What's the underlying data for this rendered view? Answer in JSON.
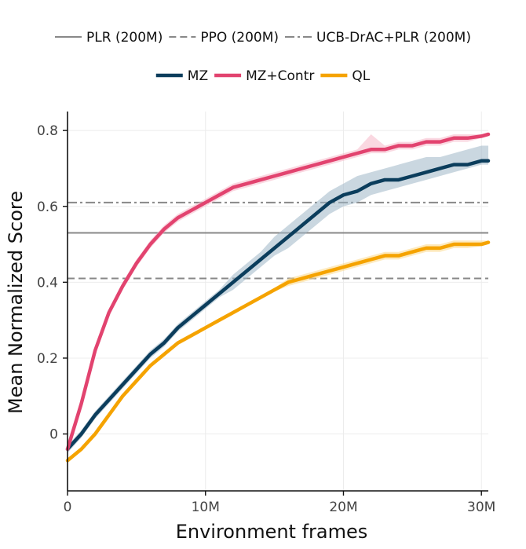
{
  "chart_data": {
    "type": "line",
    "xlabel": "Environment frames",
    "ylabel": "Mean Normalized Score",
    "xlim": [
      0,
      30.5
    ],
    "ylim": [
      -0.15,
      0.85
    ],
    "x_unit_millions": true,
    "xticks": [
      0,
      10,
      20,
      30
    ],
    "xtick_labels": [
      "0",
      "10M",
      "20M",
      "30M"
    ],
    "yticks": [
      0,
      0.2,
      0.4,
      0.6,
      0.8
    ],
    "ytick_labels": [
      "0",
      "0.2",
      "0.4",
      "0.6",
      "0.8"
    ],
    "grid": true,
    "legend_placement": "top",
    "baselines": [
      {
        "name": "PLR (200M)",
        "value": 0.53,
        "style": "solid",
        "color": "#888888"
      },
      {
        "name": "PPO (200M)",
        "value": 0.41,
        "style": "dashed",
        "color": "#888888"
      },
      {
        "name": "UCB-DrAC+PLR (200M)",
        "value": 0.61,
        "style": "dashdot",
        "color": "#888888"
      }
    ],
    "series": [
      {
        "name": "MZ",
        "color": "#0b3d5c",
        "band_color": "#9fb6c6",
        "x": [
          0,
          1,
          2,
          3,
          4,
          5,
          6,
          7,
          8,
          9,
          10,
          11,
          12,
          13,
          14,
          15,
          16,
          17,
          18,
          19,
          20,
          21,
          22,
          23,
          24,
          25,
          26,
          27,
          28,
          29,
          30,
          30.5
        ],
        "y": [
          -0.04,
          0.0,
          0.05,
          0.09,
          0.13,
          0.17,
          0.21,
          0.24,
          0.28,
          0.31,
          0.34,
          0.37,
          0.4,
          0.43,
          0.46,
          0.49,
          0.52,
          0.55,
          0.58,
          0.61,
          0.63,
          0.64,
          0.66,
          0.67,
          0.67,
          0.68,
          0.69,
          0.7,
          0.71,
          0.71,
          0.72,
          0.72
        ],
        "lo": [
          -0.05,
          -0.01,
          0.04,
          0.08,
          0.12,
          0.16,
          0.2,
          0.23,
          0.27,
          0.3,
          0.33,
          0.36,
          0.38,
          0.41,
          0.44,
          0.47,
          0.49,
          0.52,
          0.55,
          0.58,
          0.6,
          0.61,
          0.63,
          0.64,
          0.65,
          0.66,
          0.67,
          0.68,
          0.69,
          0.7,
          0.71,
          0.71
        ],
        "hi": [
          -0.03,
          0.01,
          0.06,
          0.1,
          0.14,
          0.18,
          0.22,
          0.25,
          0.29,
          0.32,
          0.35,
          0.38,
          0.42,
          0.45,
          0.48,
          0.52,
          0.55,
          0.58,
          0.61,
          0.64,
          0.66,
          0.68,
          0.69,
          0.7,
          0.71,
          0.72,
          0.73,
          0.73,
          0.74,
          0.75,
          0.76,
          0.76
        ]
      },
      {
        "name": "MZ+Contr",
        "color": "#e2436f",
        "band_color": "#f5b8c9",
        "x": [
          0,
          1,
          2,
          3,
          4,
          5,
          6,
          7,
          8,
          9,
          10,
          11,
          12,
          13,
          14,
          15,
          16,
          17,
          18,
          19,
          20,
          21,
          22,
          23,
          24,
          25,
          26,
          27,
          28,
          29,
          30,
          30.5
        ],
        "y": [
          -0.04,
          0.08,
          0.22,
          0.32,
          0.39,
          0.45,
          0.5,
          0.54,
          0.57,
          0.59,
          0.61,
          0.63,
          0.65,
          0.66,
          0.67,
          0.68,
          0.69,
          0.7,
          0.71,
          0.72,
          0.73,
          0.74,
          0.75,
          0.75,
          0.76,
          0.76,
          0.77,
          0.77,
          0.78,
          0.78,
          0.785,
          0.79
        ],
        "lo": [
          -0.05,
          0.07,
          0.21,
          0.31,
          0.38,
          0.44,
          0.49,
          0.53,
          0.56,
          0.58,
          0.6,
          0.62,
          0.64,
          0.65,
          0.66,
          0.67,
          0.68,
          0.69,
          0.7,
          0.71,
          0.72,
          0.73,
          0.74,
          0.74,
          0.75,
          0.75,
          0.76,
          0.76,
          0.77,
          0.77,
          0.78,
          0.785
        ],
        "hi": [
          -0.03,
          0.09,
          0.23,
          0.33,
          0.4,
          0.46,
          0.51,
          0.55,
          0.58,
          0.6,
          0.62,
          0.64,
          0.66,
          0.67,
          0.68,
          0.69,
          0.7,
          0.71,
          0.72,
          0.73,
          0.74,
          0.75,
          0.79,
          0.76,
          0.77,
          0.77,
          0.78,
          0.78,
          0.79,
          0.79,
          0.79,
          0.795
        ]
      },
      {
        "name": "QL",
        "color": "#f5a300",
        "band_color": "#fbd98a",
        "x": [
          0,
          1,
          2,
          3,
          4,
          5,
          6,
          7,
          8,
          9,
          10,
          11,
          12,
          13,
          14,
          15,
          16,
          17,
          18,
          19,
          20,
          21,
          22,
          23,
          24,
          25,
          26,
          27,
          28,
          29,
          30,
          30.5
        ],
        "y": [
          -0.07,
          -0.04,
          0.0,
          0.05,
          0.1,
          0.14,
          0.18,
          0.21,
          0.24,
          0.26,
          0.28,
          0.3,
          0.32,
          0.34,
          0.36,
          0.38,
          0.4,
          0.41,
          0.42,
          0.43,
          0.44,
          0.45,
          0.46,
          0.47,
          0.47,
          0.48,
          0.49,
          0.49,
          0.5,
          0.5,
          0.5,
          0.505
        ],
        "lo": [
          -0.075,
          -0.045,
          -0.005,
          0.045,
          0.095,
          0.135,
          0.175,
          0.205,
          0.235,
          0.255,
          0.275,
          0.295,
          0.315,
          0.335,
          0.355,
          0.375,
          0.39,
          0.4,
          0.41,
          0.42,
          0.43,
          0.44,
          0.45,
          0.46,
          0.46,
          0.47,
          0.48,
          0.48,
          0.49,
          0.49,
          0.495,
          0.5
        ],
        "hi": [
          -0.065,
          -0.035,
          0.005,
          0.055,
          0.105,
          0.145,
          0.185,
          0.215,
          0.245,
          0.265,
          0.285,
          0.305,
          0.325,
          0.345,
          0.365,
          0.385,
          0.41,
          0.42,
          0.43,
          0.44,
          0.45,
          0.46,
          0.47,
          0.48,
          0.48,
          0.49,
          0.5,
          0.5,
          0.51,
          0.51,
          0.51,
          0.51
        ]
      }
    ]
  }
}
